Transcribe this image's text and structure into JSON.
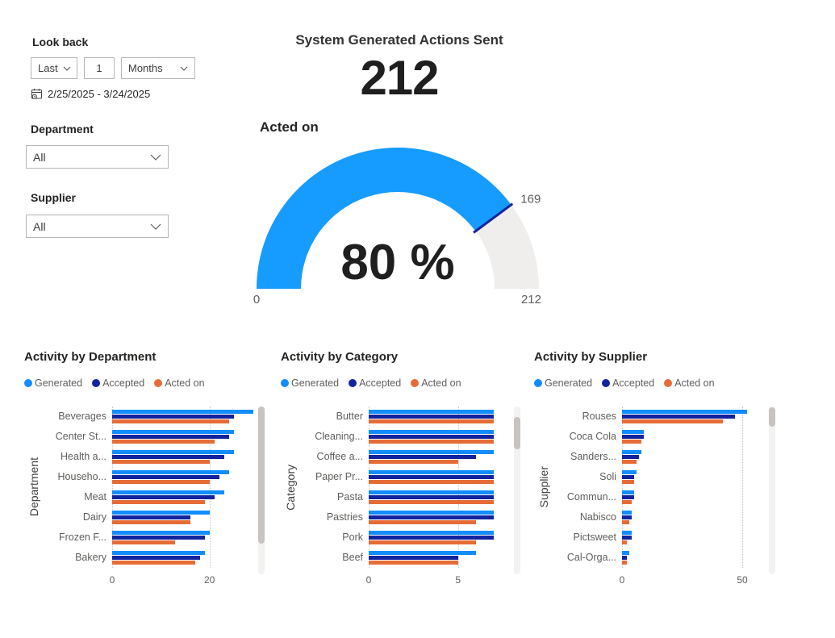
{
  "filters": {
    "look_back_label": "Look back",
    "last_value": "Last",
    "number_value": "1",
    "unit_value": "Months",
    "date_range": "2/25/2025 - 3/24/2025",
    "department_label": "Department",
    "department_value": "All",
    "supplier_label": "Supplier",
    "supplier_value": "All"
  },
  "kpi": {
    "title": "System Generated Actions Sent",
    "value": "212"
  },
  "gauge": {
    "label": "Acted on",
    "min": 0,
    "max": 212,
    "value": 169,
    "target": 169,
    "percent_label": "80 %",
    "min_label": "0",
    "max_label": "212",
    "target_label": "169",
    "fill_color": "#169BFF",
    "track_color": "#F0EEEC",
    "target_color": "#12239E"
  },
  "colors": {
    "generated": "#118DFF",
    "accepted": "#12239E",
    "acted_on": "#E66C37"
  },
  "icons": {
    "date_range": "calendar-clock-icon",
    "dropdown": "chevron-down-icon"
  },
  "chart_data": [
    {
      "type": "bar",
      "orientation": "horizontal",
      "title": "Activity by Department",
      "ylabel": "Department",
      "legend_position": "top",
      "grid": "dotted-vertical",
      "categories": [
        "Beverages",
        "Center St...",
        "Health a...",
        "Househo...",
        "Meat",
        "Dairy",
        "Frozen F...",
        "Bakery"
      ],
      "series": [
        {
          "name": "Generated",
          "color": "#118DFF",
          "values": [
            29,
            25,
            25,
            24,
            23,
            20,
            20,
            19
          ]
        },
        {
          "name": "Accepted",
          "color": "#12239E",
          "values": [
            25,
            24,
            23,
            22,
            21,
            16,
            19,
            18
          ]
        },
        {
          "name": "Acted on",
          "color": "#E66C37",
          "values": [
            24,
            21,
            20,
            20,
            19,
            16,
            13,
            17
          ]
        }
      ],
      "xaxis": {
        "ticks": [
          0,
          20
        ],
        "max": 29
      }
    },
    {
      "type": "bar",
      "orientation": "horizontal",
      "title": "Activity by Category",
      "ylabel": "Category",
      "legend_position": "top",
      "grid": "dotted-vertical",
      "categories": [
        "Butter",
        "Cleaning...",
        "Coffee a...",
        "Paper Pr...",
        "Pasta",
        "Pastries",
        "Pork",
        "Beef"
      ],
      "series": [
        {
          "name": "Generated",
          "color": "#118DFF",
          "values": [
            7,
            7,
            7,
            7,
            7,
            7,
            7,
            6
          ]
        },
        {
          "name": "Accepted",
          "color": "#12239E",
          "values": [
            7,
            7,
            6,
            7,
            7,
            7,
            7,
            5
          ]
        },
        {
          "name": "Acted on",
          "color": "#E66C37",
          "values": [
            7,
            7,
            5,
            7,
            7,
            6,
            6,
            5
          ]
        }
      ],
      "xaxis": {
        "ticks": [
          0,
          5
        ],
        "max": 7
      }
    },
    {
      "type": "bar",
      "orientation": "horizontal",
      "title": "Activity by Supplier",
      "ylabel": "Supplier",
      "legend_position": "top",
      "grid": "dotted-vertical",
      "categories": [
        "Rouses",
        "Coca Cola",
        "Sanders...",
        "Soli",
        "Commun...",
        "Nabisco",
        "Pictsweet",
        "Cal-Orga..."
      ],
      "series": [
        {
          "name": "Generated",
          "color": "#118DFF",
          "values": [
            52,
            9,
            8,
            6,
            5,
            4,
            4,
            3
          ]
        },
        {
          "name": "Accepted",
          "color": "#12239E",
          "values": [
            47,
            9,
            7,
            5,
            5,
            4,
            4,
            2
          ]
        },
        {
          "name": "Acted on",
          "color": "#E66C37",
          "values": [
            42,
            8,
            6,
            5,
            4,
            3,
            2,
            2
          ]
        }
      ],
      "xaxis": {
        "ticks": [
          0,
          50
        ],
        "max": 52
      }
    }
  ]
}
